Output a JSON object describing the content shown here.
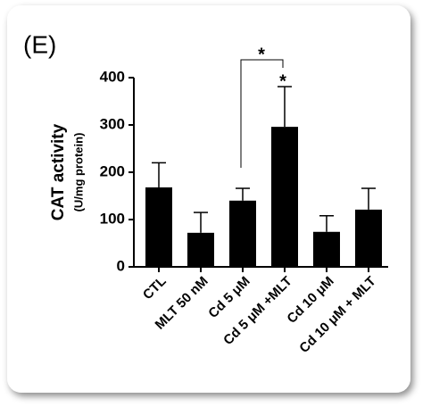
{
  "chart_data": {
    "type": "bar",
    "panel_label": "(E)",
    "y_label": "CAT activity",
    "y_sublabel": "(U/mg protein)",
    "categories": [
      "CTL",
      "MLT 50 nM",
      "Cd 5 μM",
      "Cd 5 μM +MLT",
      "Cd 10 μM",
      "Cd 10 μM + MLT"
    ],
    "values": [
      168,
      72,
      140,
      296,
      74,
      121
    ],
    "errors": [
      52,
      43,
      26,
      85,
      34,
      45
    ],
    "color": "#000000",
    "ylim": [
      0,
      400
    ],
    "yticks": [
      0,
      100,
      200,
      300,
      400
    ],
    "grid": false,
    "annotations": [
      "*",
      "*"
    ]
  }
}
